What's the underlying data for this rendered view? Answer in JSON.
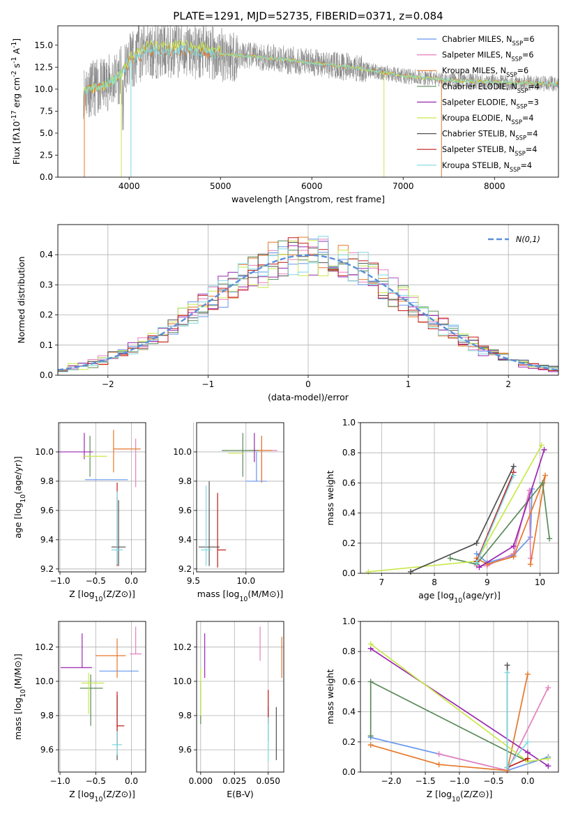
{
  "figure": {
    "title": "PLATE=1291, MJD=52735, FIBERID=0371, z=0.084"
  },
  "legend_labels": [
    "Chabrier MILES, N$_{SSP}$=6",
    "Salpeter MILES, N$_{SSP}$=6",
    "Kroupa MILES, N$_{SSP}$=6",
    "Chabrier ELODIE, N$_{SSP}$=4",
    "Salpeter ELODIE, N$_{SSP}$=3",
    "Kroupa ELODIE, N$_{SSP}$=4",
    "Chabrier STELIB, N$_{SSP}$=4",
    "Salpeter STELIB, N$_{SSP}$=4",
    "Kroupa STELIB, N$_{SSP}$=4"
  ],
  "colors": [
    "#6495ed",
    "#e67fbd",
    "#e6772a",
    "#5a8a5a",
    "#9a26b0",
    "#c8e84a",
    "#505050",
    "#c01818",
    "#7fd8e0"
  ],
  "chart_data": [
    {
      "id": "spectrum",
      "type": "line",
      "xlabel": "wavelength [Angstrom, rest frame]",
      "ylabel": "Flux [f$_\\lambda$10$^{-17}$ erg cm$^{-2}$ s$^{-1}$ A$^{-1}$]",
      "xlim": [
        3220,
        8700
      ],
      "ylim": [
        0,
        17.2
      ],
      "xticks": [
        4000,
        5000,
        6000,
        7000,
        8000
      ],
      "yticks": [
        "0.0",
        "2.5",
        "5.0",
        "7.5",
        "10.0",
        "12.5",
        "15.0"
      ],
      "legend": "top-right",
      "grid": false,
      "series_data": {
        "x_start": 3500,
        "x_end": 8700,
        "continuum": [
          [
            3500,
            9.8
          ],
          [
            3700,
            10.3
          ],
          [
            3900,
            11.5
          ],
          [
            4000,
            13.2
          ],
          [
            4200,
            14.3
          ],
          [
            4600,
            14.4
          ],
          [
            5000,
            14.0
          ],
          [
            5500,
            13.6
          ],
          [
            6000,
            13.0
          ],
          [
            6500,
            12.4
          ],
          [
            7000,
            11.5
          ],
          [
            7500,
            11.0
          ],
          [
            8000,
            10.8
          ],
          [
            8700,
            10.6
          ]
        ]
      }
    },
    {
      "id": "residual-histogram",
      "type": "line",
      "xlabel": "(data-model)/error",
      "ylabel": "Normed distribution",
      "xlim": [
        -2.5,
        2.5
      ],
      "ylim": [
        0,
        0.5
      ],
      "xticks": [
        "−2",
        "−1",
        "0",
        "1",
        "2"
      ],
      "yticks": [
        "0.0",
        "0.1",
        "0.2",
        "0.3",
        "0.4"
      ],
      "legend_entry": "$\\mathcal{N}(0,1)$",
      "legend": "top-right",
      "grid": true
    },
    {
      "id": "age-vs-Z",
      "type": "scatter",
      "xlabel": "Z [log$_{10}$(Z/Z$_\\odot$)]",
      "ylabel": "age  [log$_{10}$(age/yr)]",
      "xlim": [
        -1.02,
        0.2
      ],
      "ylim": [
        9.18,
        10.2
      ],
      "xticks": [
        "−1.0",
        "−0.5",
        "0.0"
      ],
      "yticks": [
        "9.2",
        "9.4",
        "9.6",
        "9.8",
        "10.0"
      ],
      "grid": true,
      "points": [
        {
          "x": -0.35,
          "y": 9.81,
          "dxl": 0.3,
          "dxr": 0.3,
          "dyl": 0,
          "dyu": 0
        },
        {
          "x": 0.06,
          "y": 9.8,
          "dxl": 0,
          "dxr": 0,
          "dyl": 0.04,
          "dyu": 0.29
        },
        {
          "x": -0.25,
          "y": 10.02,
          "dxl": 0,
          "dxr": 0.38,
          "dyl": 0.16,
          "dyu": 0.13
        },
        {
          "x": -0.58,
          "y": 9.99,
          "dxl": 0,
          "dxr": 0,
          "dyl": 0.16,
          "dyu": 0.12
        },
        {
          "x": -0.66,
          "y": 10.0,
          "dxl": 0.36,
          "dxr": 0.12,
          "dyl": 0.05,
          "dyu": 0.13
        },
        {
          "x": -0.58,
          "y": 9.97,
          "dxl": 0.1,
          "dxr": 0.24,
          "dyl": 0,
          "dyu": 0
        },
        {
          "x": -0.18,
          "y": 9.35,
          "dxl": 0.1,
          "dxr": 0.1,
          "dyl": 0.13,
          "dyu": 0.32
        },
        {
          "x": -0.2,
          "y": 9.34,
          "dxl": 0,
          "dxr": 0,
          "dyl": 0.12,
          "dyu": 0.45
        },
        {
          "x": -0.2,
          "y": 9.33,
          "dxl": 0.08,
          "dxr": 0.08,
          "dyl": 0.1,
          "dyu": 0.4
        }
      ]
    },
    {
      "id": "age-vs-mass",
      "type": "scatter",
      "xlabel": "mass [log$_{10}$(M/M$_\\odot$)]",
      "ylabel": "",
      "xlim": [
        9.53,
        10.36
      ],
      "ylim": [
        9.18,
        10.2
      ],
      "xticks": [
        "9.5",
        "10.0"
      ],
      "yticks": [
        "9.2",
        "9.4",
        "9.6",
        "9.8",
        "10.0"
      ],
      "grid": true,
      "points": [
        {
          "x": 10.1,
          "y": 9.8,
          "dxl": 0.1,
          "dxr": 0.1,
          "dyl": 0,
          "dyu": 0.2
        },
        {
          "x": 10.15,
          "y": 10.01,
          "dxl": 0.1,
          "dxr": 0.15,
          "dyl": 0.2,
          "dyu": 0.1
        },
        {
          "x": 10.15,
          "y": 10.01,
          "dxl": 0.12,
          "dxr": 0.1,
          "dyl": 0.22,
          "dyu": 0.1
        },
        {
          "x": 9.97,
          "y": 10.01,
          "dxl": 0.2,
          "dxr": 0.15,
          "dyl": 0.18,
          "dyu": 0.12
        },
        {
          "x": 10.08,
          "y": 10.03,
          "dxl": 0,
          "dxr": 0,
          "dyl": 0.1,
          "dyu": 0.1
        },
        {
          "x": 9.93,
          "y": 9.99,
          "dxl": 0.1,
          "dxr": 0.05,
          "dyl": 0,
          "dyu": 0
        },
        {
          "x": 9.65,
          "y": 9.35,
          "dxl": 0.1,
          "dxr": 0.1,
          "dyl": 0.13,
          "dyu": 0.45
        },
        {
          "x": 9.73,
          "y": 9.33,
          "dxl": 0,
          "dxr": 0.08,
          "dyl": 0.12,
          "dyu": 0.39
        },
        {
          "x": 9.62,
          "y": 9.33,
          "dxl": 0.05,
          "dxr": 0.05,
          "dyl": 0.11,
          "dyu": 0.44
        }
      ]
    },
    {
      "id": "mass-weight-vs-age",
      "type": "line",
      "xlabel": "age  [log$_{10}$(age/yr)]",
      "ylabel": "mass weight",
      "xlim": [
        6.6,
        10.35
      ],
      "ylim": [
        0,
        1.0
      ],
      "xticks": [
        "7",
        "8",
        "9",
        "10"
      ],
      "yticks": [
        "0.0",
        "0.2",
        "0.4",
        "0.6",
        "0.8",
        "1.0"
      ],
      "grid": true,
      "series": [
        {
          "points": [
            [
              8.8,
              0.13
            ],
            [
              9.0,
              0.07
            ],
            [
              9.5,
              0.12
            ],
            [
              9.82,
              0.24
            ],
            [
              9.85,
              0.56
            ]
          ]
        },
        {
          "points": [
            [
              8.8,
              0.05
            ],
            [
              9.0,
              0.05
            ],
            [
              9.5,
              0.13
            ],
            [
              9.8,
              0.55
            ],
            [
              9.82,
              0.1
            ]
          ]
        },
        {
          "points": [
            [
              8.8,
              0.1
            ],
            [
              9.0,
              0.06
            ],
            [
              9.5,
              0.11
            ],
            [
              10.1,
              0.65
            ],
            [
              9.82,
              0.06
            ]
          ]
        },
        {
          "points": [
            [
              8.3,
              0.1
            ],
            [
              8.8,
              0.06
            ],
            [
              10.05,
              0.6
            ],
            [
              10.18,
              0.23
            ]
          ]
        },
        {
          "points": [
            [
              8.85,
              0.04
            ],
            [
              9.5,
              0.18
            ],
            [
              10.08,
              0.82
            ]
          ]
        },
        {
          "points": [
            [
              6.75,
              0.01
            ],
            [
              8.8,
              0.08
            ],
            [
              10.03,
              0.85
            ]
          ]
        },
        {
          "points": [
            [
              7.55,
              0.01
            ],
            [
              8.8,
              0.2
            ],
            [
              9.5,
              0.71
            ]
          ]
        },
        {
          "points": [
            [
              8.8,
              0.08
            ],
            [
              9.5,
              0.67
            ]
          ]
        },
        {
          "points": [
            [
              8.8,
              0.07
            ],
            [
              9.5,
              0.65
            ]
          ]
        }
      ]
    },
    {
      "id": "mass-vs-Z",
      "type": "scatter",
      "xlabel": "Z [log$_{10}$(Z/Z$_\\odot$)]",
      "ylabel": "mass [log$_{10}$(M/M$_\\odot$)]",
      "xlim": [
        -1.02,
        0.2
      ],
      "ylim": [
        9.47,
        10.35
      ],
      "xticks": [
        "−1.0",
        "−0.5",
        "0.0"
      ],
      "yticks": [
        "9.6",
        "9.8",
        "10.0",
        "10.2"
      ],
      "grid": true,
      "points": [
        {
          "x": -0.2,
          "y": 10.06,
          "dxl": 0.25,
          "dxr": 0.3,
          "dyl": 0,
          "dyu": 0
        },
        {
          "x": 0.06,
          "y": 10.16,
          "dxl": 0.08,
          "dxr": 0.08,
          "dyl": 0,
          "dyu": 0.16
        },
        {
          "x": -0.2,
          "y": 10.15,
          "dxl": 0.3,
          "dxr": 0.12,
          "dyl": 0.13,
          "dyu": 0.1
        },
        {
          "x": -0.57,
          "y": 9.96,
          "dxl": 0.15,
          "dxr": 0.17,
          "dyl": 0.22,
          "dyu": 0.08
        },
        {
          "x": -0.69,
          "y": 10.08,
          "dxl": 0.3,
          "dxr": 0.14,
          "dyl": 0,
          "dyu": 0.2
        },
        {
          "x": -0.6,
          "y": 9.99,
          "dxl": 0.1,
          "dxr": 0.22,
          "dyl": 0.18,
          "dyu": 0.06
        },
        {
          "x": -0.2,
          "y": 9.6,
          "dxl": 0,
          "dxr": 0,
          "dyl": 0.06,
          "dyu": 0.32
        },
        {
          "x": -0.2,
          "y": 9.74,
          "dxl": 0.0,
          "dxr": 0.1,
          "dyl": 0.12,
          "dyu": 0.2
        },
        {
          "x": -0.2,
          "y": 9.63,
          "dxl": 0.07,
          "dxr": 0.07,
          "dyl": 0.06,
          "dyu": 0.08
        }
      ]
    },
    {
      "id": "mass-vs-ebv",
      "type": "scatter",
      "xlabel": "E(B-V)",
      "ylabel": "",
      "xlim": [
        -0.003,
        0.0615
      ],
      "ylim": [
        9.47,
        10.35
      ],
      "xticks": [
        "0.000",
        "0.025",
        "0.050"
      ],
      "yticks": [
        "9.6",
        "9.8",
        "10.0",
        "10.2"
      ],
      "grid": true,
      "points": [
        {
          "x": 0.05,
          "y": 9.75,
          "dyl": 0.1,
          "dyu": 0.1
        },
        {
          "x": 0.044,
          "y": 10.2,
          "dyl": 0.08,
          "dyu": 0.12
        },
        {
          "x": 0.06,
          "y": 10.14,
          "dyl": 0.12,
          "dyu": 0.12
        },
        {
          "x": 0.0,
          "y": 9.85,
          "dyl": 0.1,
          "dyu": 0.15
        },
        {
          "x": 0.003,
          "y": 10.15,
          "dyl": 0.13,
          "dyu": 0.13
        },
        {
          "x": 0.0,
          "y": 9.95,
          "dyl": 0.15,
          "dyu": 0.13
        },
        {
          "x": 0.056,
          "y": 9.7,
          "dyl": 0.16,
          "dyu": 0.15
        },
        {
          "x": 0.05,
          "y": 9.85,
          "dyl": 0.1,
          "dyu": 0.1
        },
        {
          "x": 0.05,
          "y": 9.65,
          "dyl": 0.12,
          "dyu": 0.14
        }
      ]
    },
    {
      "id": "mass-weight-vs-Z",
      "type": "line",
      "xlabel": "Z [log$_{10}$(Z/Z$_\\odot$)]",
      "ylabel": "mass weight",
      "xlim": [
        -2.45,
        0.45
      ],
      "ylim": [
        0,
        1.0
      ],
      "xticks": [
        "−2.0",
        "−1.5",
        "−1.0",
        "−0.5",
        "0.0"
      ],
      "yticks": [
        "0.0",
        "0.2",
        "0.4",
        "0.6",
        "0.8",
        "1.0"
      ],
      "grid": true,
      "series": [
        {
          "points": [
            [
              -2.3,
              0.23
            ],
            [
              -0.3,
              0.01
            ],
            [
              0.3,
              0.1
            ]
          ]
        },
        {
          "points": [
            [
              -1.3,
              0.12
            ],
            [
              -0.3,
              0.01
            ],
            [
              0.3,
              0.56
            ]
          ]
        },
        {
          "points": [
            [
              -2.3,
              0.18
            ],
            [
              -1.3,
              0.05
            ],
            [
              -0.3,
              0.01
            ],
            [
              0.0,
              0.65
            ]
          ]
        },
        {
          "points": [
            [
              -2.3,
              0.24
            ],
            [
              -2.3,
              0.6
            ],
            [
              0.0,
              0.07
            ]
          ]
        },
        {
          "points": [
            [
              -2.3,
              0.82
            ],
            [
              0.0,
              0.13
            ],
            [
              0.3,
              0.04
            ]
          ]
        },
        {
          "points": [
            [
              -2.3,
              0.85
            ],
            [
              0.0,
              0.07
            ],
            [
              0.3,
              0.09
            ]
          ]
        },
        {
          "points": [
            [
              -0.3,
              0.71
            ],
            [
              -0.3,
              0.03
            ]
          ]
        },
        {
          "points": [
            [
              -0.3,
              0.03
            ],
            [
              0.0,
              0.09
            ]
          ]
        },
        {
          "points": [
            [
              -0.3,
              0.66
            ],
            [
              -0.3,
              0.03
            ],
            [
              0.0,
              0.2
            ]
          ]
        }
      ]
    }
  ]
}
